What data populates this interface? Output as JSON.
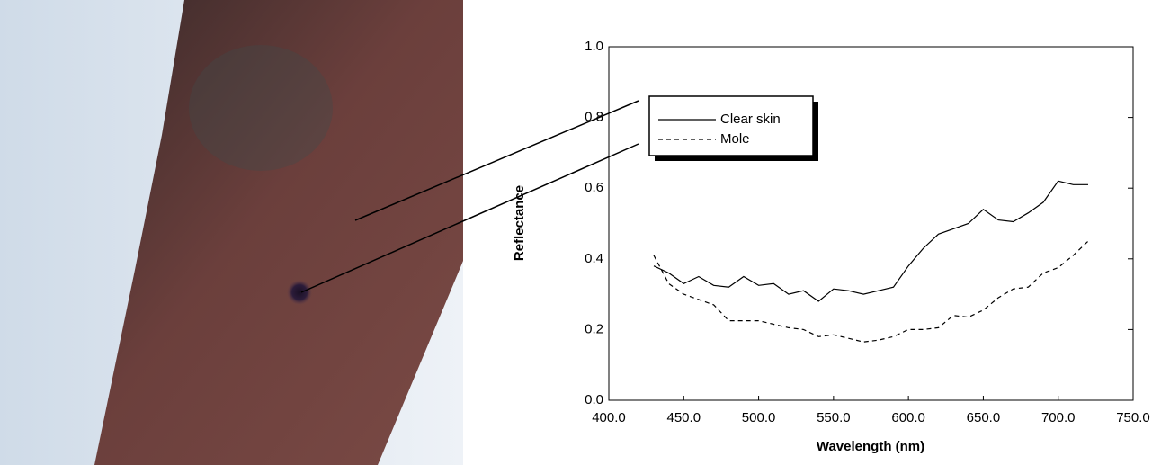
{
  "chart_data": {
    "type": "line",
    "x_label": "Wavelength (nm)",
    "y_label": "Reflectance",
    "x": [
      430,
      440,
      450,
      460,
      470,
      480,
      490,
      500,
      510,
      520,
      530,
      540,
      550,
      560,
      570,
      580,
      590,
      600,
      610,
      620,
      630,
      640,
      650,
      660,
      670,
      680,
      690,
      700,
      710,
      720
    ],
    "series": [
      {
        "name": "Clear skin",
        "color": "#000000",
        "line_style": "solid",
        "values": [
          0.38,
          0.36,
          0.33,
          0.35,
          0.325,
          0.32,
          0.35,
          0.325,
          0.33,
          0.3,
          0.31,
          0.28,
          0.315,
          0.31,
          0.3,
          0.31,
          0.32,
          0.38,
          0.43,
          0.47,
          0.485,
          0.5,
          0.54,
          0.51,
          0.505,
          0.53,
          0.56,
          0.62,
          0.61,
          0.61
        ]
      },
      {
        "name": "Mole",
        "color": "#000000",
        "line_style": "dashed",
        "values": [
          0.41,
          0.33,
          0.3,
          0.285,
          0.27,
          0.225,
          0.225,
          0.225,
          0.215,
          0.205,
          0.2,
          0.18,
          0.185,
          0.175,
          0.165,
          0.17,
          0.18,
          0.2,
          0.2,
          0.205,
          0.24,
          0.235,
          0.255,
          0.29,
          0.315,
          0.32,
          0.36,
          0.375,
          0.41,
          0.45
        ]
      }
    ],
    "xlim": [
      400,
      750
    ],
    "xticks": [
      {
        "value": 400,
        "label": "400.0"
      },
      {
        "value": 450,
        "label": "450.0"
      },
      {
        "value": 500,
        "label": "500.0"
      },
      {
        "value": 550,
        "label": "550.0"
      },
      {
        "value": 600,
        "label": "600.0"
      },
      {
        "value": 650,
        "label": "650.0"
      },
      {
        "value": 700,
        "label": "700.0"
      },
      {
        "value": 750,
        "label": "750.0"
      }
    ],
    "ylim": [
      0,
      1
    ],
    "yticks": [
      {
        "value": 0,
        "label": "0.0"
      },
      0.2,
      0.4,
      0.6,
      0.8,
      {
        "value": 1,
        "label": "1.0"
      }
    ],
    "grid": false
  }
}
